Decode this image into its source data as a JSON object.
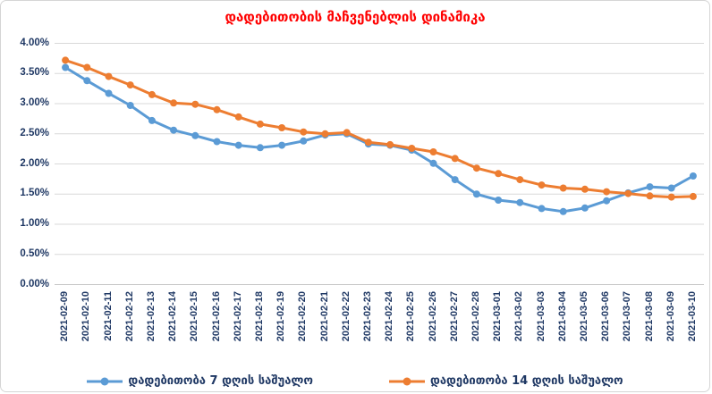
{
  "title": {
    "text": "დადებითობის მაჩვენებლის დინამიკა",
    "color": "#ff0000"
  },
  "chart_data": {
    "type": "line",
    "title": "დადებითობის მაჩვენებლის დინამიკა",
    "categories": [
      "2021-02-09",
      "2021-02-10",
      "2021-02-11",
      "2021-02-12",
      "2021-02-13",
      "2021-02-14",
      "2021-02-15",
      "2021-02-16",
      "2021-02-17",
      "2021-02-18",
      "2021-02-19",
      "2021-02-20",
      "2021-02-21",
      "2021-02-22",
      "2021-02-23",
      "2021-02-24",
      "2021-02-25",
      "2021-02-26",
      "2021-02-27",
      "2021-02-28",
      "2021-03-01",
      "2021-03-02",
      "2021-03-03",
      "2021-03-04",
      "2021-03-05",
      "2021-03-06",
      "2021-03-07",
      "2021-03-08",
      "2021-03-09",
      "2021-03-10"
    ],
    "series": [
      {
        "name": "დადებითობა 7 დღის საშუალო",
        "color": "#5b9bd5",
        "values": [
          3.6,
          3.38,
          3.17,
          2.97,
          2.72,
          2.56,
          2.47,
          2.37,
          2.31,
          2.27,
          2.31,
          2.38,
          2.48,
          2.5,
          2.33,
          2.31,
          2.23,
          2.01,
          1.74,
          1.5,
          1.4,
          1.36,
          1.26,
          1.21,
          1.27,
          1.39,
          1.52,
          1.62,
          1.6,
          1.8
        ]
      },
      {
        "name": "დადებითობა 14 დღის საშუალო",
        "color": "#ed7d31",
        "values": [
          3.72,
          3.6,
          3.45,
          3.31,
          3.15,
          3.01,
          2.99,
          2.9,
          2.78,
          2.66,
          2.6,
          2.53,
          2.5,
          2.52,
          2.36,
          2.32,
          2.26,
          2.2,
          2.09,
          1.93,
          1.84,
          1.74,
          1.65,
          1.6,
          1.58,
          1.54,
          1.51,
          1.47,
          1.45,
          1.46
        ]
      }
    ],
    "xlabel": "",
    "ylabel": "",
    "y_axis": {
      "min": 0,
      "max": 4,
      "step": 0.5,
      "tick_labels": [
        "0.00%",
        "0.50%",
        "1.00%",
        "1.50%",
        "2.00%",
        "2.50%",
        "3.00%",
        "3.50%",
        "4.00%"
      ]
    },
    "grid": true,
    "legend_position": "bottom",
    "axis_text_color": "#1f3864",
    "gridline_color": "#d9d9d9",
    "axisline_color": "#c9c9c9"
  }
}
